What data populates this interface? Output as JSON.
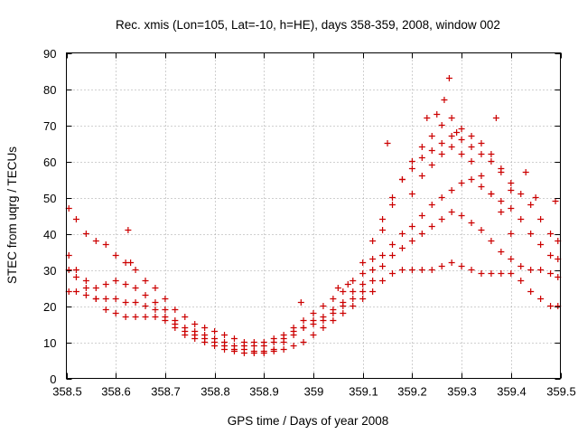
{
  "chart_data": {
    "type": "scatter",
    "title": "Rec. xmis (Lon=105, Lat=-10, h=HE), days 358-359, 2008, window 002",
    "xlabel": "GPS time / Days of year 2008",
    "ylabel": "STEC from uqrg / TECUs",
    "xlim": [
      358.5,
      359.5
    ],
    "ylim": [
      0,
      90
    ],
    "x_ticks": [
      358.5,
      358.6,
      358.7,
      358.8,
      358.9,
      359,
      359.1,
      359.2,
      359.3,
      359.4,
      359.5
    ],
    "x_tick_labels": [
      "358.5",
      "358.6",
      "358.7",
      "358.8",
      "358.9",
      "359",
      "359.1",
      "359.2",
      "359.3",
      "359.4",
      "359.5"
    ],
    "y_ticks": [
      0,
      10,
      20,
      30,
      40,
      50,
      60,
      70,
      80,
      90
    ],
    "y_tick_labels": [
      "0",
      "10",
      "20",
      "30",
      "40",
      "50",
      "60",
      "70",
      "80",
      "90"
    ],
    "grid": true,
    "legend": "none",
    "marker": "plus",
    "color": "#cc0000",
    "series": [
      {
        "x": [
          358.505,
          358.52,
          358.54,
          358.56,
          358.58,
          358.6,
          358.62,
          358.64,
          358.66,
          358.68,
          358.7,
          358.72,
          358.74,
          358.76,
          358.78,
          358.8,
          358.82,
          358.84,
          358.86,
          358.88,
          358.9,
          358.92,
          358.94,
          358.96,
          358.98,
          359.0,
          359.02,
          359.04,
          359.06,
          359.08,
          359.1,
          359.12,
          359.14,
          359.16,
          359.18,
          359.2,
          359.22,
          359.24,
          359.26,
          359.28,
          359.3,
          359.32,
          359.34,
          359.36,
          359.38,
          359.4,
          359.42,
          359.44,
          359.46,
          359.48,
          359.495
        ],
        "y": [
          24,
          24,
          23,
          22,
          22,
          22,
          21,
          21,
          20,
          19,
          17,
          15,
          13,
          12,
          11,
          10,
          9,
          8,
          8,
          7.5,
          7,
          7.5,
          8,
          9,
          10,
          12,
          14,
          16,
          18,
          20,
          22,
          24,
          27,
          29,
          30,
          30,
          30,
          30,
          31,
          32,
          31,
          30,
          29,
          29,
          29,
          29,
          27,
          24,
          22,
          20,
          20
        ]
      },
      {
        "x": [
          358.505,
          358.52,
          358.54,
          358.56,
          358.58,
          358.6,
          358.62,
          358.64,
          358.66,
          358.68,
          358.7,
          358.72,
          358.74,
          358.76,
          358.78,
          358.8,
          358.82,
          358.84,
          358.86,
          358.88,
          358.9,
          358.92,
          358.94,
          358.96,
          358.98,
          359.0,
          359.02,
          359.04,
          359.06,
          359.08,
          359.1,
          359.12,
          359.14,
          359.16,
          359.18,
          359.2,
          359.22,
          359.24,
          359.26,
          359.28,
          359.3,
          359.32,
          359.34,
          359.36,
          359.38,
          359.4,
          359.42,
          359.44,
          359.46,
          359.48,
          359.495
        ],
        "y": [
          30,
          28,
          25,
          22,
          19,
          18,
          17,
          17,
          17,
          17,
          16,
          14,
          12,
          11,
          10,
          9,
          8,
          7.5,
          7,
          7,
          7.5,
          8,
          10,
          12,
          14,
          15,
          16,
          18,
          20,
          22,
          24,
          27,
          31,
          34,
          36,
          38,
          40,
          42,
          44,
          46,
          45,
          43,
          41,
          38,
          35,
          33,
          31,
          30,
          30,
          29,
          28
        ]
      },
      {
        "x": [
          358.505,
          358.52,
          358.54,
          358.56,
          358.58,
          358.6,
          358.62,
          358.64,
          358.66,
          358.68,
          358.7,
          358.72,
          358.74,
          358.76,
          358.78,
          358.8,
          358.82,
          358.84,
          358.86,
          358.88,
          358.9,
          358.92,
          358.94,
          358.96,
          358.98,
          359.0,
          359.02,
          359.04,
          359.06,
          359.08,
          359.1,
          359.12,
          359.14,
          359.16,
          359.18,
          359.2,
          359.22,
          359.24,
          359.26,
          359.28,
          359.3,
          359.32,
          359.34,
          359.36,
          359.38,
          359.4,
          359.42,
          359.44,
          359.46,
          359.48,
          359.495
        ],
        "y": [
          34,
          30,
          27,
          25,
          26,
          27,
          26,
          25,
          23,
          21,
          19,
          16,
          14,
          13,
          12,
          11,
          10,
          9,
          9,
          9,
          9,
          10,
          11,
          13,
          14,
          16,
          17,
          19,
          21,
          24,
          26,
          30,
          34,
          37,
          40,
          42,
          45,
          48,
          50,
          52,
          54,
          55,
          53,
          51,
          49,
          47,
          44,
          40,
          37,
          34,
          33
        ]
      },
      {
        "x": [
          358.505,
          358.52,
          358.54,
          358.56,
          358.58,
          358.6,
          358.62,
          358.64,
          358.66,
          358.68,
          358.7,
          358.72,
          358.74,
          358.76,
          358.78,
          358.8,
          358.82,
          358.84,
          358.86,
          358.88,
          358.9,
          358.92,
          358.94,
          358.96,
          358.98,
          359.0,
          359.02,
          359.04,
          359.06,
          359.08,
          359.1,
          359.12,
          359.14,
          359.16,
          359.18,
          359.2,
          359.22,
          359.24,
          359.26,
          359.28,
          359.3,
          359.32,
          359.34,
          359.36,
          359.38,
          359.4,
          359.42,
          359.44,
          359.46,
          359.48,
          359.495
        ],
        "y": [
          47,
          44,
          40,
          38,
          37,
          34,
          32,
          30,
          27,
          25,
          22,
          19,
          17,
          15,
          14,
          13,
          12,
          11,
          10,
          10,
          10,
          11,
          12,
          14,
          16,
          18,
          20,
          22,
          24,
          27,
          32,
          38,
          44,
          50,
          55,
          58,
          61,
          63,
          65,
          67,
          66,
          64,
          62,
          60,
          57,
          54,
          51,
          48,
          44,
          40,
          38
        ]
      },
      {
        "x": [
          359.1,
          359.12,
          359.14,
          359.16,
          359.18,
          359.2,
          359.22,
          359.24,
          359.26,
          359.28,
          359.3,
          359.32,
          359.34,
          359.36,
          359.38,
          359.4
        ],
        "y": [
          29,
          33,
          41,
          48,
          55,
          60,
          64,
          67,
          70,
          72,
          69,
          67,
          65,
          62,
          58,
          52
        ]
      },
      {
        "x": [
          359.2,
          359.22,
          359.24,
          359.26,
          359.28,
          359.3,
          359.32,
          359.34,
          359.36,
          359.38,
          359.4
        ],
        "y": [
          51,
          56,
          59,
          62,
          64,
          62,
          60,
          56,
          51,
          46,
          40
        ]
      },
      {
        "x": [
          358.625,
          359.15,
          359.23,
          359.25,
          359.265,
          359.275,
          359.29,
          359.37,
          359.43,
          359.45,
          359.49,
          358.63,
          358.975,
          359.05,
          359.07
        ],
        "y": [
          41,
          65,
          72,
          73,
          77,
          83,
          68,
          72,
          57,
          50,
          49,
          32,
          21,
          25,
          26
        ]
      }
    ]
  }
}
